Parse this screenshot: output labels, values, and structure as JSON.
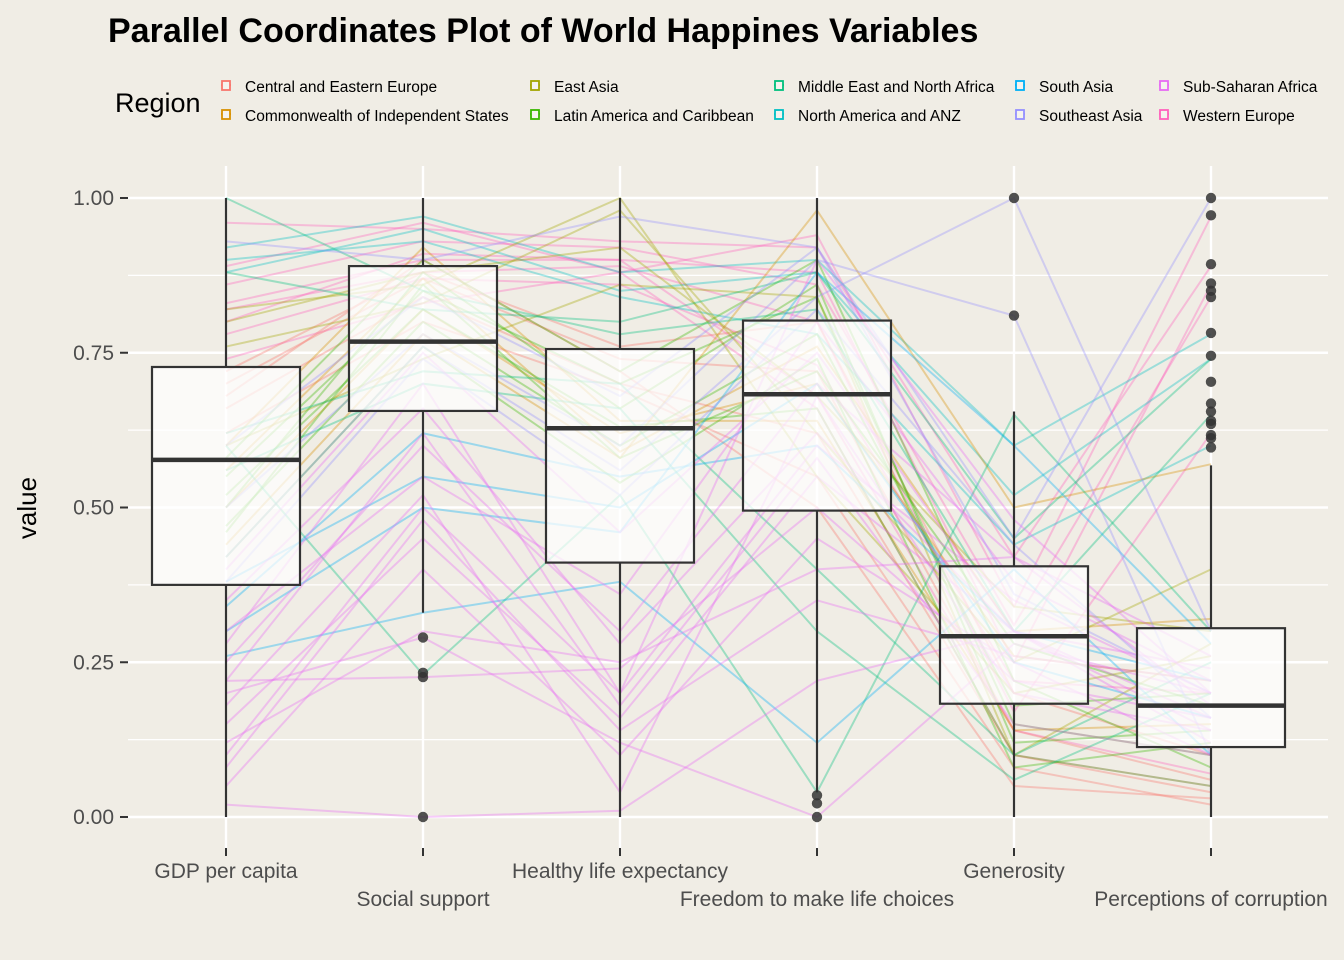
{
  "chart_data": {
    "type": "parallel-coordinates",
    "title": "Parallel Coordinates Plot of World Happines Variables",
    "ylabel": "value",
    "xlabel": "",
    "ylim": [
      0,
      1
    ],
    "y_ticks": [
      "0.00",
      "0.25",
      "0.50",
      "0.75",
      "1.00"
    ],
    "y_tick_values": [
      0,
      0.25,
      0.5,
      0.75,
      1
    ],
    "grid": true,
    "legend": {
      "title": "Region",
      "position": "top",
      "entries": [
        {
          "name": "Central and Eastern Europe",
          "color": "#F8766D"
        },
        {
          "name": "Commonwealth of Independent States",
          "color": "#D89000"
        },
        {
          "name": "East Asia",
          "color": "#A3A500"
        },
        {
          "name": "Latin America and Caribbean",
          "color": "#39B600"
        },
        {
          "name": "Middle East and North Africa",
          "color": "#00BF7D"
        },
        {
          "name": "North America and ANZ",
          "color": "#00BFC4"
        },
        {
          "name": "South Asia",
          "color": "#00B0F6"
        },
        {
          "name": "Southeast Asia",
          "color": "#9590FF"
        },
        {
          "name": "Sub-Saharan Africa",
          "color": "#E76BF3"
        },
        {
          "name": "Western Europe",
          "color": "#FF62BC"
        }
      ]
    },
    "variables": [
      "GDP per capita",
      "Social support",
      "Healthy life expectancy",
      "Freedom to make life choices",
      "Generosity",
      "Perceptions of corruption"
    ],
    "boxplots": [
      {
        "variable": "GDP per capita",
        "q1": 0.375,
        "median": 0.577,
        "q3": 0.727,
        "whisker_low": 0.0,
        "whisker_high": 1.0,
        "outliers": []
      },
      {
        "variable": "Social support",
        "q1": 0.656,
        "median": 0.768,
        "q3": 0.89,
        "whisker_low": 0.33,
        "whisker_high": 1.0,
        "outliers": [
          0.29,
          0.233,
          0.226,
          0.0
        ]
      },
      {
        "variable": "Healthy life expectancy",
        "q1": 0.411,
        "median": 0.628,
        "q3": 0.756,
        "whisker_low": 0.0,
        "whisker_high": 1.0,
        "outliers": []
      },
      {
        "variable": "Freedom to make life choices",
        "q1": 0.495,
        "median": 0.683,
        "q3": 0.802,
        "whisker_low": 0.04,
        "whisker_high": 1.0,
        "outliers": [
          0.035,
          0.022,
          0.0
        ]
      },
      {
        "variable": "Generosity",
        "q1": 0.183,
        "median": 0.292,
        "q3": 0.405,
        "whisker_low": 0.0,
        "whisker_high": 0.655,
        "outliers": [
          1.0,
          0.81
        ]
      },
      {
        "variable": "Perceptions of corruption",
        "q1": 0.113,
        "median": 0.18,
        "q3": 0.305,
        "whisker_low": 0.0,
        "whisker_high": 0.568,
        "outliers": [
          1.0,
          0.972,
          0.893,
          0.862,
          0.85,
          0.84,
          0.782,
          0.745,
          0.703,
          0.668,
          0.655,
          0.64,
          0.635,
          0.617,
          0.612,
          0.597
        ]
      }
    ],
    "sample_lines": [
      {
        "region": "Western Europe",
        "values": [
          0.96,
          0.95,
          0.93,
          0.92,
          0.42,
          0.89
        ]
      },
      {
        "region": "Western Europe",
        "values": [
          0.89,
          0.96,
          0.88,
          0.94,
          0.34,
          0.97
        ]
      },
      {
        "region": "Western Europe",
        "values": [
          0.83,
          0.9,
          0.9,
          0.88,
          0.25,
          0.86
        ]
      },
      {
        "region": "Western Europe",
        "values": [
          0.86,
          0.93,
          0.92,
          0.86,
          0.31,
          0.84
        ]
      },
      {
        "region": "Western Europe",
        "values": [
          0.82,
          0.88,
          0.89,
          0.8,
          0.17,
          0.62
        ]
      },
      {
        "region": "Western Europe",
        "values": [
          0.78,
          0.87,
          0.86,
          0.73,
          0.22,
          0.2
        ]
      },
      {
        "region": "Western Europe",
        "values": [
          0.8,
          0.91,
          0.9,
          0.68,
          0.14,
          0.07
        ]
      },
      {
        "region": "Western Europe",
        "values": [
          0.74,
          0.83,
          0.88,
          0.66,
          0.1,
          0.05
        ]
      },
      {
        "region": "North America and ANZ",
        "values": [
          0.92,
          0.97,
          0.88,
          0.9,
          0.6,
          0.78
        ]
      },
      {
        "region": "North America and ANZ",
        "values": [
          0.88,
          0.95,
          0.85,
          0.88,
          0.52,
          0.74
        ]
      },
      {
        "region": "North America and ANZ",
        "values": [
          0.9,
          0.93,
          0.84,
          0.78,
          0.44,
          0.6
        ]
      },
      {
        "region": "Central and Eastern Europe",
        "values": [
          0.7,
          0.87,
          0.74,
          0.72,
          0.14,
          0.06
        ]
      },
      {
        "region": "Central and Eastern Europe",
        "values": [
          0.66,
          0.84,
          0.7,
          0.62,
          0.1,
          0.04
        ]
      },
      {
        "region": "Central and Eastern Europe",
        "values": [
          0.72,
          0.88,
          0.76,
          0.8,
          0.2,
          0.1
        ]
      },
      {
        "region": "Central and Eastern Europe",
        "values": [
          0.62,
          0.8,
          0.69,
          0.55,
          0.08,
          0.02
        ]
      },
      {
        "region": "Central and Eastern Europe",
        "values": [
          0.68,
          0.9,
          0.72,
          0.5,
          0.05,
          0.03
        ]
      },
      {
        "region": "Commonwealth of Independent States",
        "values": [
          0.5,
          0.82,
          0.62,
          0.7,
          0.26,
          0.22
        ]
      },
      {
        "region": "Commonwealth of Independent States",
        "values": [
          0.56,
          0.87,
          0.59,
          0.76,
          0.3,
          0.32
        ]
      },
      {
        "region": "Commonwealth of Independent States",
        "values": [
          0.44,
          0.78,
          0.58,
          0.98,
          0.5,
          0.57
        ]
      },
      {
        "region": "Commonwealth of Independent States",
        "values": [
          0.6,
          0.92,
          0.64,
          0.64,
          0.14,
          0.15
        ]
      },
      {
        "region": "East Asia",
        "values": [
          0.82,
          0.86,
          1.0,
          0.55,
          0.2,
          0.26
        ]
      },
      {
        "region": "East Asia",
        "values": [
          0.76,
          0.83,
          0.98,
          0.62,
          0.25,
          0.4
        ]
      },
      {
        "region": "East Asia",
        "values": [
          0.6,
          0.74,
          0.86,
          0.84,
          0.1,
          0.28
        ]
      },
      {
        "region": "East Asia",
        "values": [
          0.8,
          0.88,
          0.92,
          0.68,
          0.34,
          0.3
        ]
      },
      {
        "region": "Latin America and Caribbean",
        "values": [
          0.55,
          0.85,
          0.7,
          0.84,
          0.15,
          0.1
        ]
      },
      {
        "region": "Latin America and Caribbean",
        "values": [
          0.5,
          0.88,
          0.66,
          0.86,
          0.12,
          0.14
        ]
      },
      {
        "region": "Latin America and Caribbean",
        "values": [
          0.47,
          0.8,
          0.6,
          0.78,
          0.18,
          0.2
        ]
      },
      {
        "region": "Latin America and Caribbean",
        "values": [
          0.58,
          0.9,
          0.72,
          0.9,
          0.22,
          0.08
        ]
      },
      {
        "region": "Latin America and Caribbean",
        "values": [
          0.42,
          0.76,
          0.54,
          0.74,
          0.08,
          0.12
        ]
      },
      {
        "region": "Latin America and Caribbean",
        "values": [
          0.52,
          0.82,
          0.63,
          0.66,
          0.1,
          0.05
        ]
      },
      {
        "region": "Latin America and Caribbean",
        "values": [
          0.46,
          0.86,
          0.58,
          0.72,
          0.28,
          0.18
        ]
      },
      {
        "region": "Middle East and North Africa",
        "values": [
          0.88,
          0.82,
          0.8,
          0.88,
          0.45,
          0.74
        ]
      },
      {
        "region": "Middle East and North Africa",
        "values": [
          0.62,
          0.72,
          0.7,
          0.4,
          0.1,
          0.25
        ]
      },
      {
        "region": "Middle East and North Africa",
        "values": [
          0.56,
          0.7,
          0.66,
          0.3,
          0.06,
          0.2
        ]
      },
      {
        "region": "Middle East and North Africa",
        "values": [
          0.6,
          0.23,
          0.52,
          0.04,
          0.65,
          0.3
        ]
      },
      {
        "region": "Middle East and North Africa",
        "values": [
          1.0,
          0.85,
          0.78,
          0.82,
          0.3,
          0.65
        ]
      },
      {
        "region": "South Asia",
        "values": [
          0.3,
          0.5,
          0.46,
          0.88,
          0.6,
          0.28
        ]
      },
      {
        "region": "South Asia",
        "values": [
          0.38,
          0.55,
          0.5,
          0.7,
          0.25,
          0.16
        ]
      },
      {
        "region": "South Asia",
        "values": [
          0.26,
          0.33,
          0.38,
          0.12,
          0.4,
          0.1
        ]
      },
      {
        "region": "South Asia",
        "values": [
          0.34,
          0.62,
          0.55,
          0.6,
          0.3,
          0.22
        ]
      },
      {
        "region": "Southeast Asia",
        "values": [
          0.93,
          0.9,
          0.97,
          0.92,
          0.45,
          1.0
        ]
      },
      {
        "region": "Southeast Asia",
        "values": [
          0.42,
          0.76,
          0.56,
          0.84,
          1.0,
          0.3
        ]
      },
      {
        "region": "Southeast Asia",
        "values": [
          0.5,
          0.78,
          0.6,
          0.9,
          0.81,
          0.1
        ]
      },
      {
        "region": "Southeast Asia",
        "values": [
          0.38,
          0.74,
          0.52,
          0.82,
          0.44,
          0.16
        ]
      },
      {
        "region": "Southeast Asia",
        "values": [
          0.6,
          0.84,
          0.68,
          0.92,
          0.36,
          0.2
        ]
      },
      {
        "region": "Sub-Saharan Africa",
        "values": [
          0.02,
          0.0,
          0.01,
          0.22,
          0.3,
          0.14
        ]
      },
      {
        "region": "Sub-Saharan Africa",
        "values": [
          0.2,
          0.29,
          0.12,
          0.0,
          0.28,
          0.2
        ]
      },
      {
        "region": "Sub-Saharan Africa",
        "values": [
          0.22,
          0.226,
          0.24,
          0.5,
          0.22,
          0.16
        ]
      },
      {
        "region": "Sub-Saharan Africa",
        "values": [
          0.1,
          0.5,
          0.2,
          0.6,
          0.35,
          0.2
        ]
      },
      {
        "region": "Sub-Saharan Africa",
        "values": [
          0.15,
          0.45,
          0.16,
          0.55,
          0.3,
          0.12
        ]
      },
      {
        "region": "Sub-Saharan Africa",
        "values": [
          0.25,
          0.6,
          0.3,
          0.7,
          0.42,
          0.18
        ]
      },
      {
        "region": "Sub-Saharan Africa",
        "values": [
          0.3,
          0.55,
          0.36,
          0.8,
          0.38,
          0.22
        ]
      },
      {
        "region": "Sub-Saharan Africa",
        "values": [
          0.05,
          0.4,
          0.1,
          0.45,
          0.25,
          0.1
        ]
      },
      {
        "region": "Sub-Saharan Africa",
        "values": [
          0.35,
          0.66,
          0.28,
          0.62,
          0.3,
          0.24
        ]
      },
      {
        "region": "Sub-Saharan Africa",
        "values": [
          0.18,
          0.52,
          0.04,
          0.68,
          0.2,
          0.14
        ]
      },
      {
        "region": "Sub-Saharan Africa",
        "values": [
          0.28,
          0.7,
          0.2,
          0.9,
          0.48,
          0.2
        ]
      },
      {
        "region": "Sub-Saharan Africa",
        "values": [
          0.4,
          0.75,
          0.46,
          0.75,
          0.3,
          0.16
        ]
      },
      {
        "region": "Sub-Saharan Africa",
        "values": [
          0.12,
          0.3,
          0.25,
          0.4,
          0.42,
          0.26
        ]
      },
      {
        "region": "Sub-Saharan Africa",
        "values": [
          0.22,
          0.62,
          0.18,
          0.58,
          0.15,
          0.1
        ]
      },
      {
        "region": "Sub-Saharan Africa",
        "values": [
          0.08,
          0.48,
          0.14,
          0.35,
          0.26,
          0.22
        ]
      }
    ]
  }
}
